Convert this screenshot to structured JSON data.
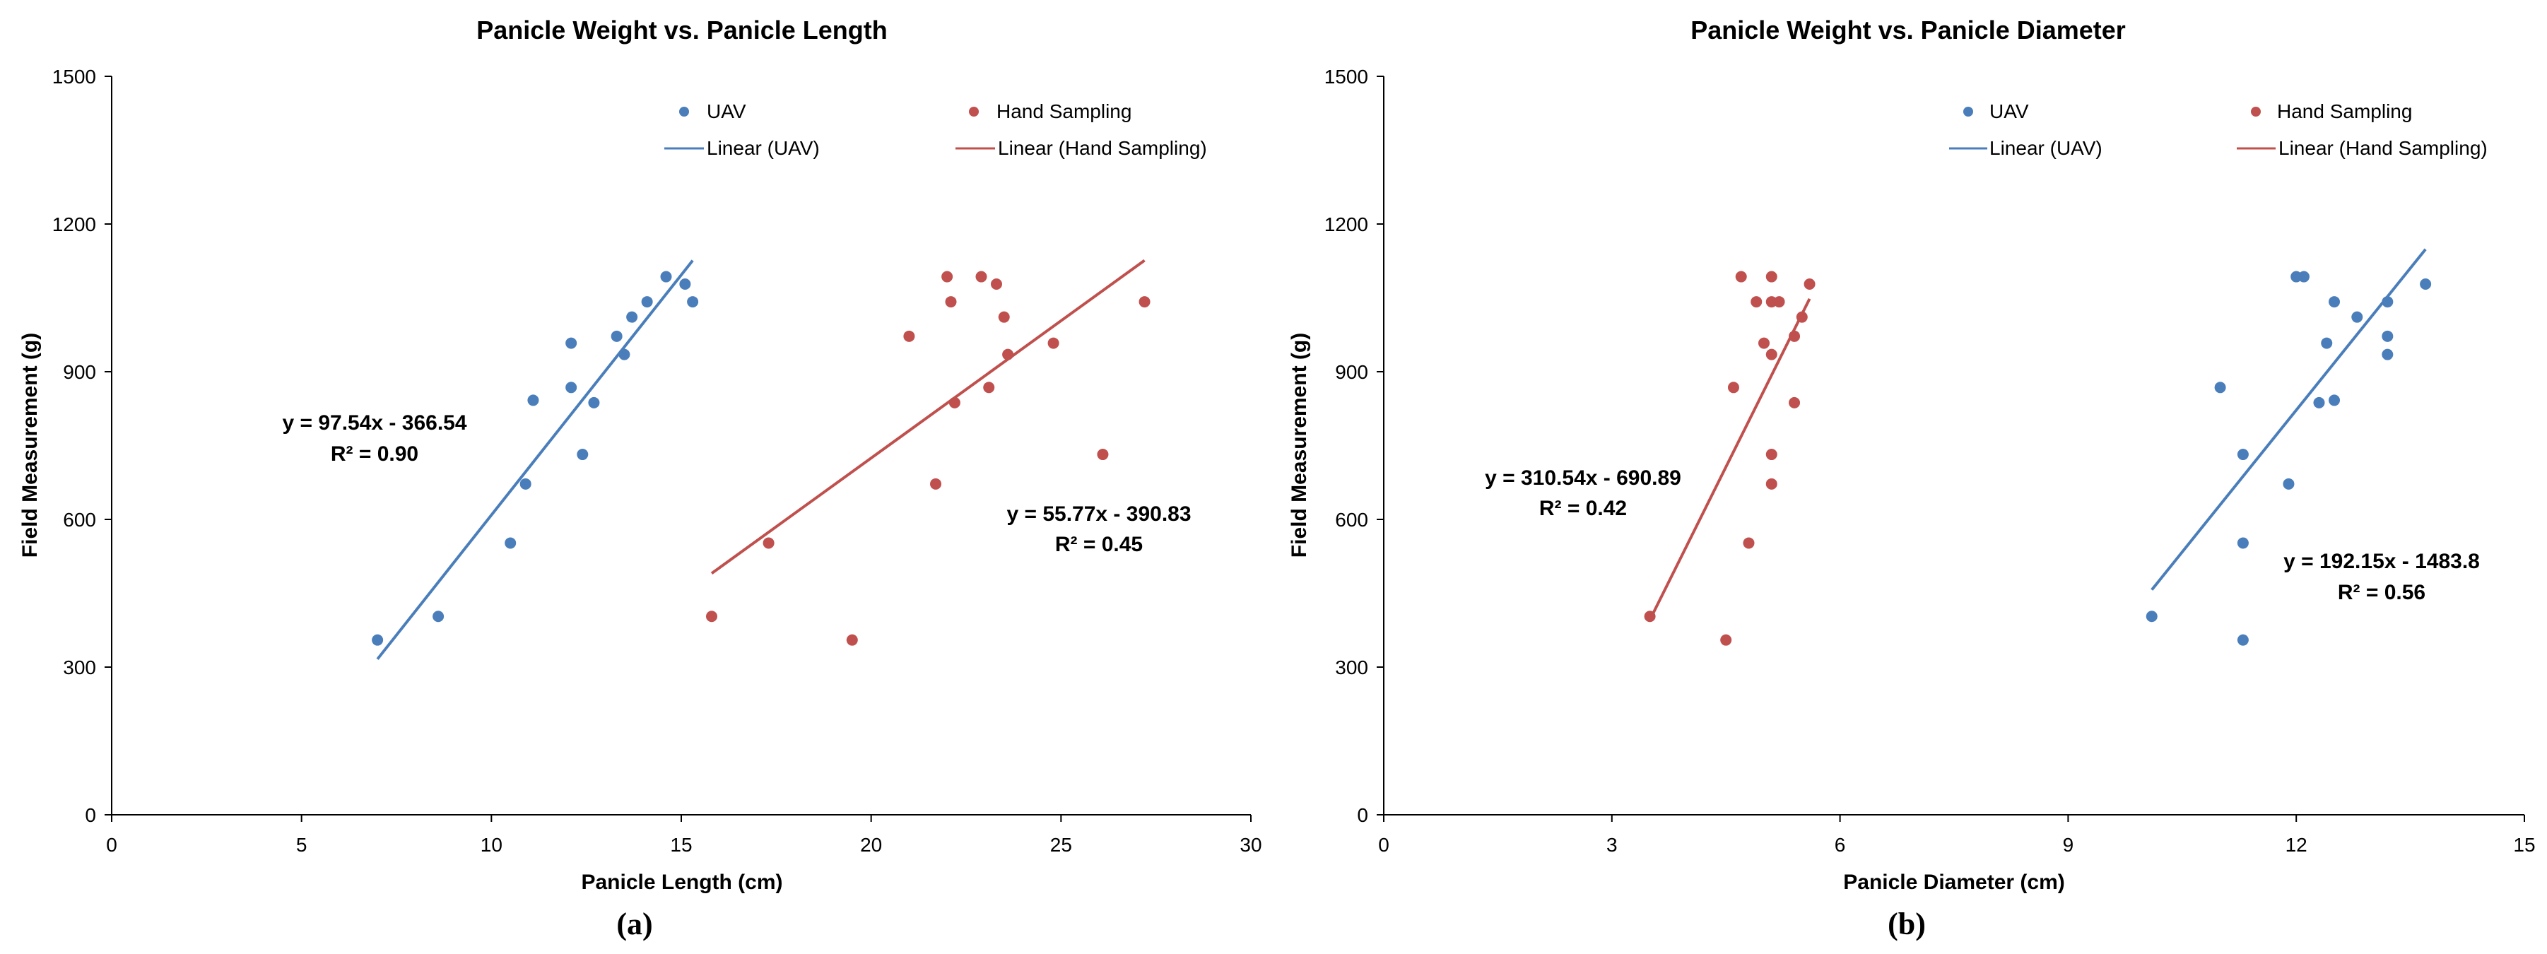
{
  "colors": {
    "uav": "#4A7EBB",
    "hand": "#C0504D",
    "axis": "#000000",
    "text": "#000000"
  },
  "chart_data": [
    {
      "type": "scatter",
      "panel_label": "(a)",
      "title": "Panicle Weight vs. Panicle Length",
      "xlabel": "Panicle Length (cm)",
      "ylabel": "Field Measurement (g)",
      "xlim": [
        0,
        30
      ],
      "ylim": [
        0,
        1500
      ],
      "xticks": [
        "0",
        "5",
        "10",
        "15",
        "20",
        "25",
        "30"
      ],
      "yticks": [
        "0",
        "300",
        "600",
        "900",
        "1200",
        "1500"
      ],
      "legend": {
        "uav": "UAV",
        "hand": "Hand Sampling",
        "uav_fit": "Linear (UAV)",
        "hand_fit": "Linear (Hand Sampling)"
      },
      "series": [
        {
          "name": "UAV",
          "color": "#4A7EBB",
          "x": [
            7.0,
            8.6,
            10.5,
            10.9,
            11.1,
            12.1,
            12.1,
            12.4,
            12.7,
            13.3,
            13.5,
            13.7,
            14.1,
            14.6,
            15.1,
            15.3
          ],
          "y": [
            355,
            403,
            552,
            672,
            842,
            868,
            958,
            732,
            837,
            972,
            935,
            1011,
            1042,
            1093,
            1078,
            1042
          ]
        },
        {
          "name": "Hand Sampling",
          "color": "#C0504D",
          "x": [
            15.8,
            17.3,
            19.5,
            21.0,
            21.7,
            22.0,
            22.1,
            22.2,
            22.9,
            23.1,
            23.3,
            23.5,
            23.6,
            24.8,
            26.1,
            27.2
          ],
          "y": [
            403,
            552,
            355,
            972,
            672,
            1093,
            1042,
            837,
            1093,
            868,
            1078,
            1011,
            935,
            958,
            732,
            1042
          ]
        }
      ],
      "fits": [
        {
          "name": "Linear (UAV)",
          "color": "#4A7EBB",
          "slope": 97.54,
          "intercept": -366.54,
          "x_range": [
            7.0,
            15.3
          ],
          "equation": "y = 97.54x - 366.54",
          "r2": "R² = 0.90"
        },
        {
          "name": "Linear (Hand Sampling)",
          "color": "#C0504D",
          "slope": 55.77,
          "intercept": -390.83,
          "x_range": [
            15.8,
            27.2
          ],
          "equation": "y = 55.77x - 390.83",
          "r2": "R² = 0.45"
        }
      ]
    },
    {
      "type": "scatter",
      "panel_label": "(b)",
      "title": "Panicle Weight vs. Panicle Diameter",
      "xlabel": "Panicle Diameter (cm)",
      "ylabel": "Field Measurement (g)",
      "xlim": [
        0,
        15
      ],
      "ylim": [
        0,
        1500
      ],
      "xticks": [
        "0",
        "3",
        "6",
        "9",
        "12",
        "15"
      ],
      "yticks": [
        "0",
        "300",
        "600",
        "900",
        "1200",
        "1500"
      ],
      "legend": {
        "uav": "UAV",
        "hand": "Hand Sampling",
        "uav_fit": "Linear (UAV)",
        "hand_fit": "Linear (Hand Sampling)"
      },
      "series": [
        {
          "name": "UAV",
          "color": "#4A7EBB",
          "x": [
            10.1,
            11.0,
            11.3,
            11.3,
            11.3,
            11.9,
            12.0,
            12.1,
            12.3,
            12.4,
            12.5,
            12.5,
            12.8,
            13.2,
            13.2,
            13.2,
            13.7
          ],
          "y": [
            403,
            868,
            552,
            355,
            732,
            672,
            1093,
            1093,
            837,
            958,
            1042,
            842,
            1011,
            972,
            1042,
            935,
            1078
          ]
        },
        {
          "name": "Hand Sampling",
          "color": "#C0504D",
          "x": [
            3.5,
            4.5,
            4.6,
            4.7,
            4.8,
            4.9,
            5.0,
            5.1,
            5.1,
            5.1,
            5.1,
            5.1,
            5.2,
            5.4,
            5.4,
            5.5,
            5.6
          ],
          "y": [
            403,
            355,
            868,
            1093,
            552,
            1042,
            958,
            935,
            1093,
            732,
            672,
            1042,
            1042,
            972,
            837,
            1011,
            1078
          ]
        }
      ],
      "fits": [
        {
          "name": "Linear (UAV)",
          "color": "#4A7EBB",
          "slope": 192.15,
          "intercept": -1483.8,
          "x_range": [
            10.1,
            13.7
          ],
          "equation": "y = 192.15x - 1483.8",
          "r2": "R² = 0.56"
        },
        {
          "name": "Linear (Hand Sampling)",
          "color": "#C0504D",
          "slope": 310.54,
          "intercept": -690.89,
          "x_range": [
            3.5,
            5.6
          ],
          "equation": "y = 310.54x - 690.89",
          "r2": "R² = 0.42"
        }
      ]
    }
  ]
}
